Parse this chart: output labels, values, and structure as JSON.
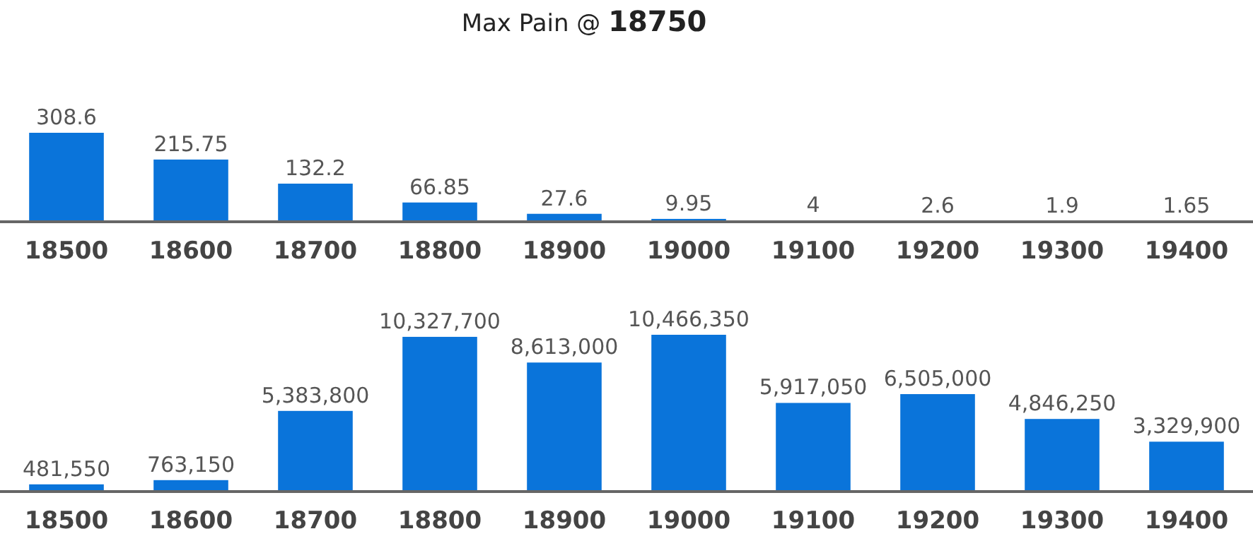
{
  "chart_data": [
    {
      "type": "bar",
      "title": "Max Pain @ 18750",
      "categories": [
        "18500",
        "18600",
        "18700",
        "18800",
        "18900",
        "19000",
        "19100",
        "19200",
        "19300",
        "19400"
      ],
      "values": [
        308.6,
        215.75,
        132.2,
        66.85,
        27.6,
        9.95,
        4,
        2.6,
        1.9,
        1.65
      ],
      "color": "#0a74da",
      "tick_labels": "x",
      "data_labels": true
    },
    {
      "type": "bar",
      "categories": [
        "18500",
        "18600",
        "18700",
        "18800",
        "18900",
        "19000",
        "19100",
        "19200",
        "19300",
        "19400"
      ],
      "values": [
        481550,
        763150,
        5383800,
        10327700,
        8613000,
        10466350,
        5917050,
        6505000,
        4846250,
        3329900
      ],
      "value_labels": [
        "481,550",
        "763,150",
        "5,383,800",
        "10,327,700",
        "8,613,000",
        "10,466,350",
        "5,917,050",
        "6,505,000",
        "4,846,250",
        "3,329,900"
      ],
      "color": "#0a74da",
      "tick_labels": "x"
    }
  ]
}
